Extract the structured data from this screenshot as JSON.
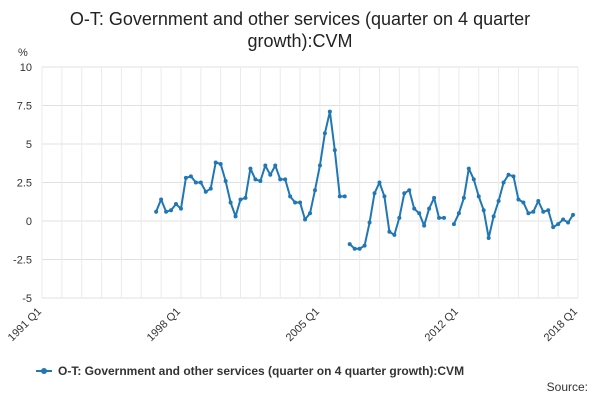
{
  "chart_data": {
    "type": "line",
    "title_line1": "O-T: Government and other services (quarter on 4 quarter",
    "title_line2": "growth):CVM",
    "ylabel": "%",
    "ylim": [
      -5,
      10
    ],
    "yticks": [
      "10",
      "7.5",
      "5",
      "2.5",
      "0",
      "-2.5",
      "-5"
    ],
    "ytick_values": [
      10,
      7.5,
      5,
      2.5,
      0,
      -2.5,
      -5
    ],
    "xlim": [
      1991,
      2018
    ],
    "xticks": [
      "1991 Q1",
      "1998 Q1",
      "2005 Q1",
      "2012 Q1",
      "2018 Q1"
    ],
    "xtick_values": [
      1991,
      1998,
      2005,
      2012,
      2018
    ],
    "grid": true,
    "legend_position": "bottom",
    "color": "#1f77b4",
    "series": [
      {
        "name": "O-T: Government and other services (quarter on 4 quarter growth):CVM",
        "segments": [
          {
            "x": [
              1996.75,
              1997.0,
              1997.25,
              1997.5,
              1997.75,
              1998.0,
              1998.25,
              1998.5,
              1998.75,
              1999.0,
              1999.25,
              1999.5,
              1999.75,
              2000.0,
              2000.25,
              2000.5,
              2000.75,
              2001.0,
              2001.25,
              2001.5,
              2001.75,
              2002.0,
              2002.25,
              2002.5,
              2002.75,
              2003.0,
              2003.25,
              2003.5,
              2003.75,
              2004.0,
              2004.25,
              2004.5,
              2004.75,
              2005.0,
              2005.25,
              2005.5,
              2005.75,
              2006.0,
              2006.25
            ],
            "y": [
              0.6,
              1.4,
              0.6,
              0.7,
              1.1,
              0.8,
              2.8,
              2.9,
              2.5,
              2.5,
              1.9,
              2.1,
              3.8,
              3.7,
              2.6,
              1.2,
              0.3,
              1.4,
              1.5,
              3.4,
              2.7,
              2.6,
              3.6,
              3.0,
              3.6,
              2.7,
              2.7,
              1.6,
              1.2,
              1.2,
              0.1,
              0.5,
              2.0,
              3.6,
              5.7,
              7.1,
              4.6,
              1.6,
              1.6
            ]
          },
          {
            "x": [
              2006.5,
              2006.75,
              2007.0,
              2007.25,
              2007.5,
              2007.75,
              2008.0,
              2008.25,
              2008.5,
              2008.75,
              2009.0,
              2009.25,
              2009.5,
              2009.75,
              2010.0,
              2010.25,
              2010.5,
              2010.75,
              2011.0,
              2011.25
            ],
            "y": [
              -1.5,
              -1.8,
              -1.8,
              -1.6,
              -0.1,
              1.8,
              2.5,
              1.6,
              -0.7,
              -0.9,
              0.2,
              1.8,
              2.0,
              0.8,
              0.5,
              -0.3,
              0.8,
              1.5,
              0.2,
              0.2
            ]
          },
          {
            "x": [
              2011.75,
              2012.0,
              2012.25,
              2012.5,
              2012.75,
              2013.0,
              2013.25,
              2013.5,
              2013.75,
              2014.0,
              2014.25,
              2014.5,
              2014.75,
              2015.0,
              2015.25,
              2015.5,
              2015.75,
              2016.0,
              2016.25,
              2016.5,
              2016.75,
              2017.0,
              2017.25,
              2017.5,
              2017.75
            ],
            "y": [
              -0.2,
              0.5,
              1.5,
              3.4,
              2.7,
              1.6,
              0.7,
              -1.1,
              0.3,
              1.3,
              2.5,
              3.0,
              2.9,
              1.4,
              1.2,
              0.5,
              0.6,
              1.3,
              0.6,
              0.7,
              -0.4,
              -0.2,
              0.1,
              -0.1,
              0.4
            ]
          }
        ]
      }
    ],
    "source_label": "Source:"
  }
}
